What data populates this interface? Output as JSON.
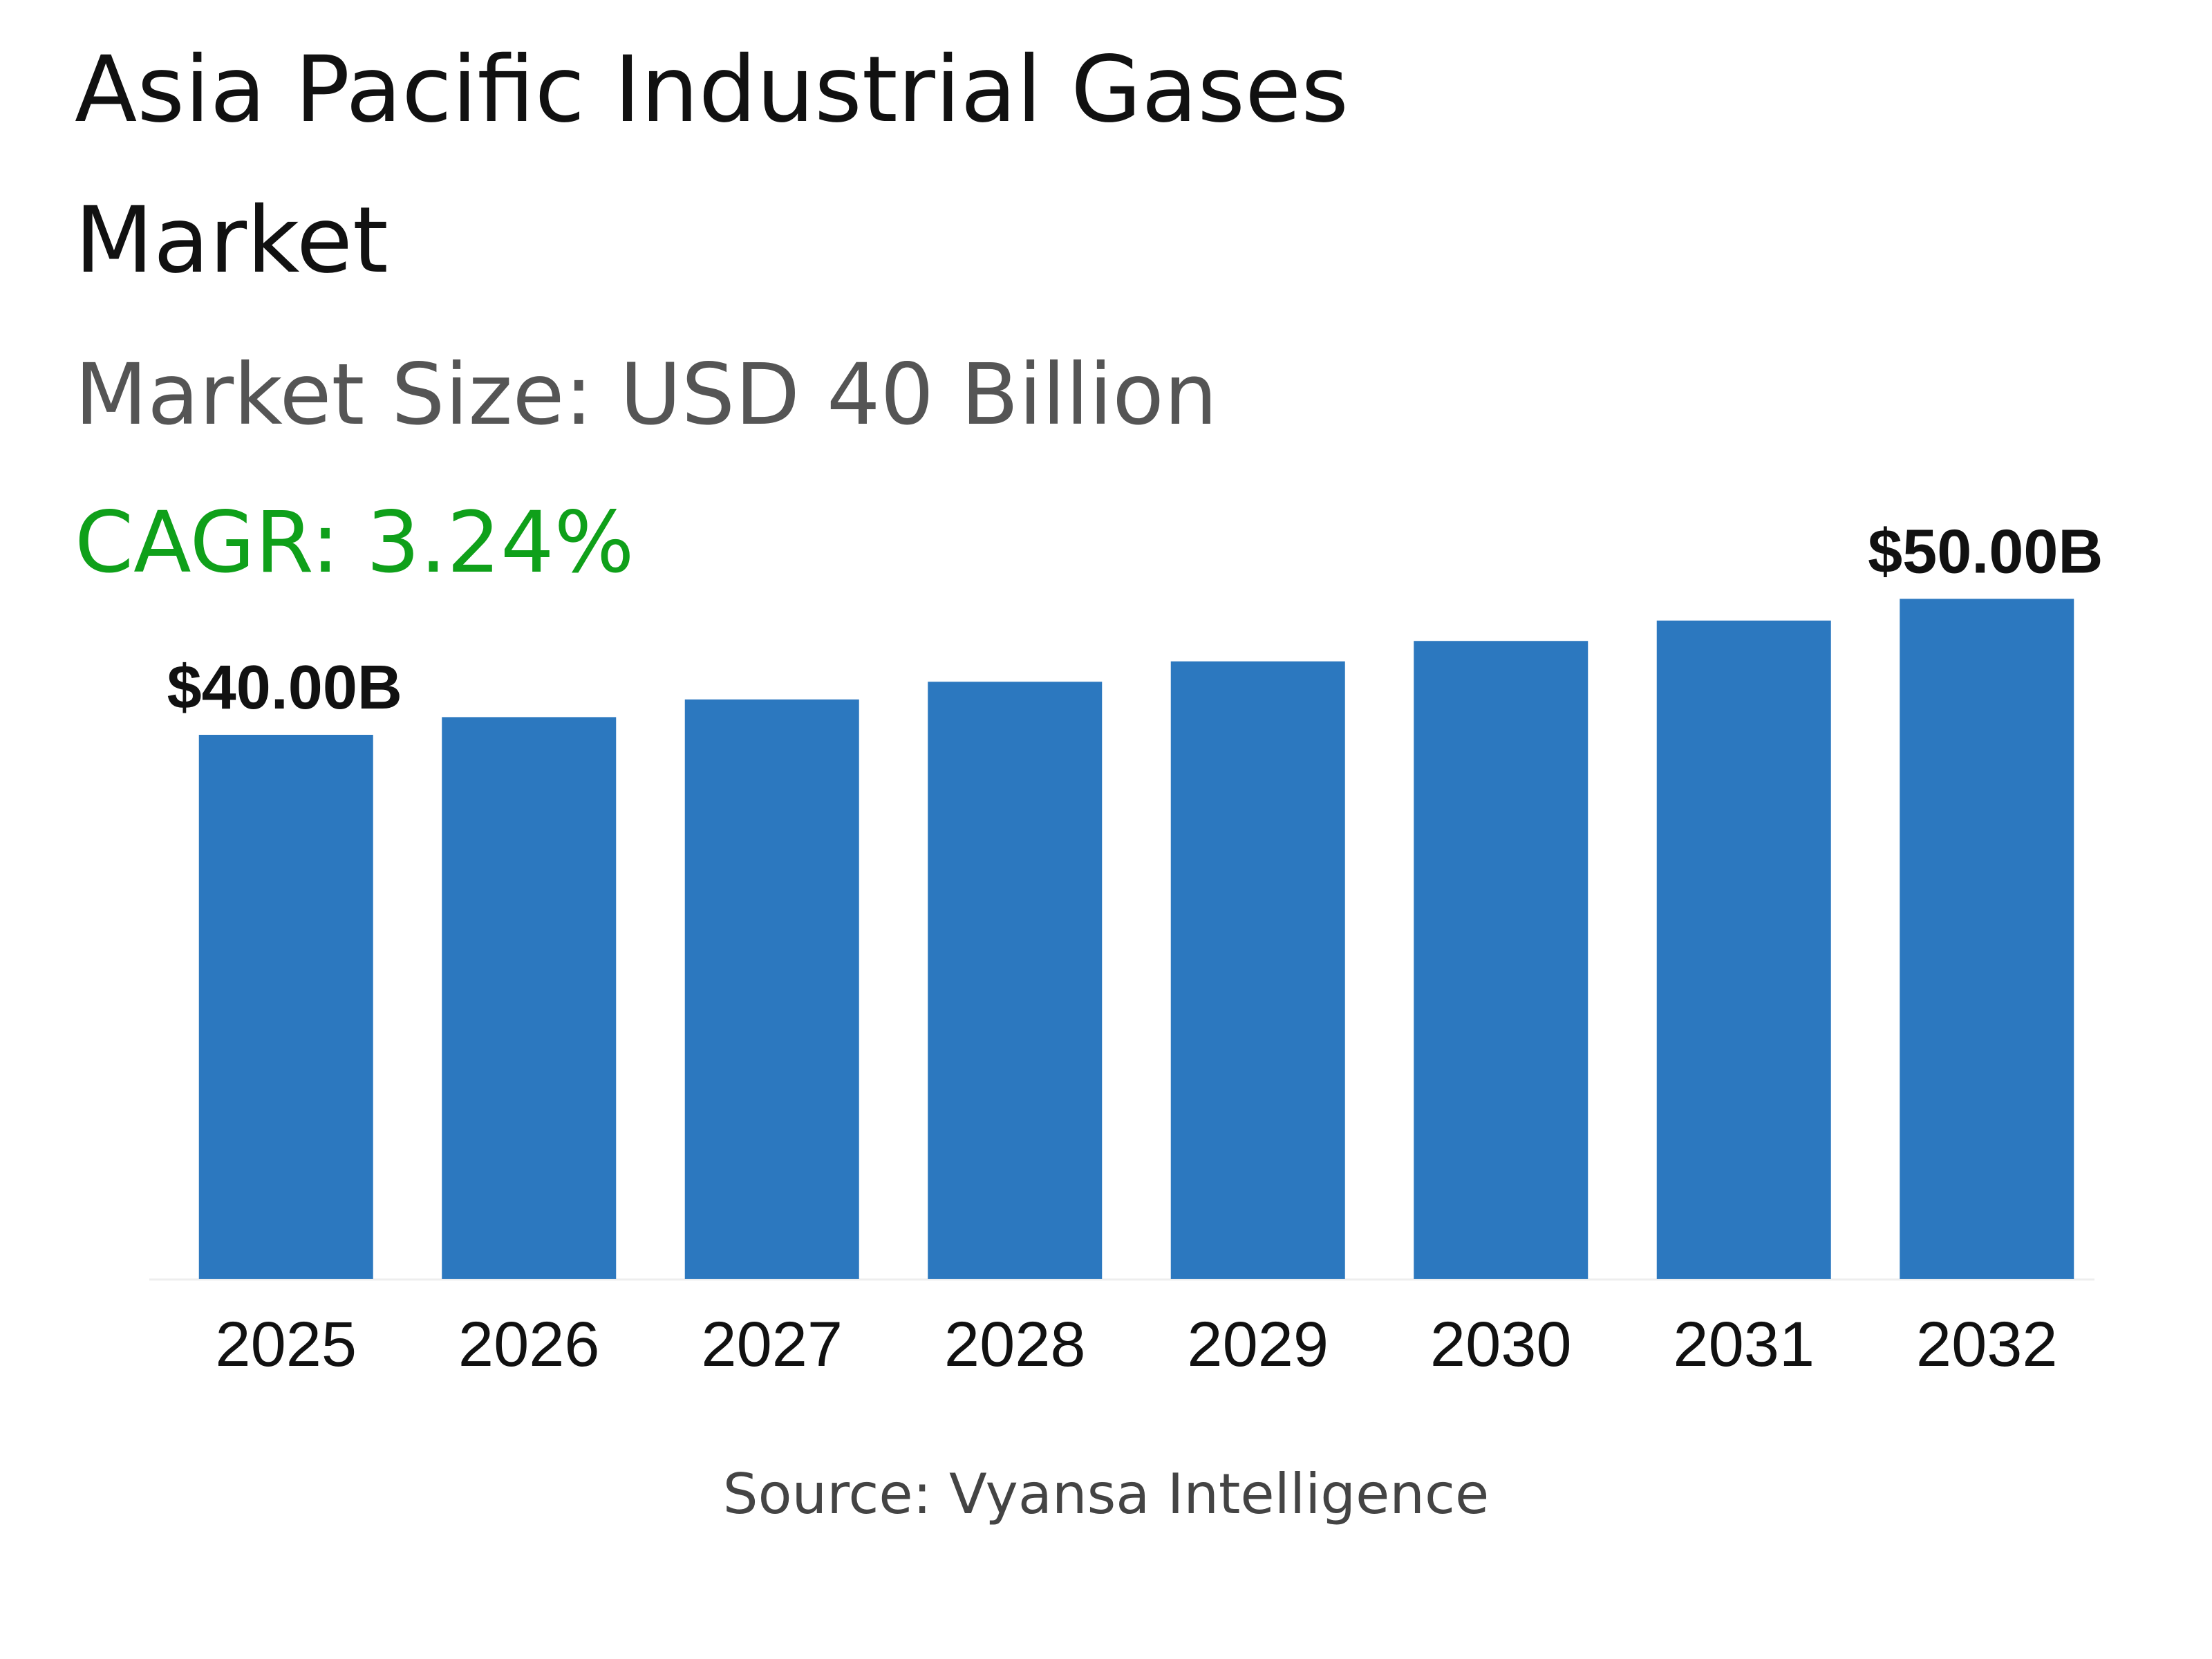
{
  "title": {
    "line1": "Asia Pacific Industrial Gases",
    "line2": "Market"
  },
  "market_size": "Market Size: USD 40 Billion",
  "cagr": "CAGR: 3.24%",
  "source": "Source: Vyansa Intelligence",
  "colors": {
    "bar": "#2c78bf",
    "title": "#111111",
    "subtitle": "#555555",
    "cagr": "#0fa01a",
    "source": "#444444",
    "baseline": "#eeeeee"
  },
  "chart_data": {
    "type": "bar",
    "title": "Asia Pacific Industrial Gases Market",
    "categories": [
      "2025",
      "2026",
      "2027",
      "2028",
      "2029",
      "2030",
      "2031",
      "2032"
    ],
    "values": [
      40.0,
      41.3,
      42.6,
      43.9,
      45.4,
      46.9,
      48.4,
      50.0
    ],
    "unit": "USD Billion",
    "data_labels": [
      {
        "index": 0,
        "text": "$40.00B"
      },
      {
        "index": 7,
        "text": "$50.00B"
      }
    ],
    "ylim": [
      0,
      52
    ],
    "grid": false,
    "legend": "none",
    "xlabel": "",
    "ylabel": ""
  }
}
